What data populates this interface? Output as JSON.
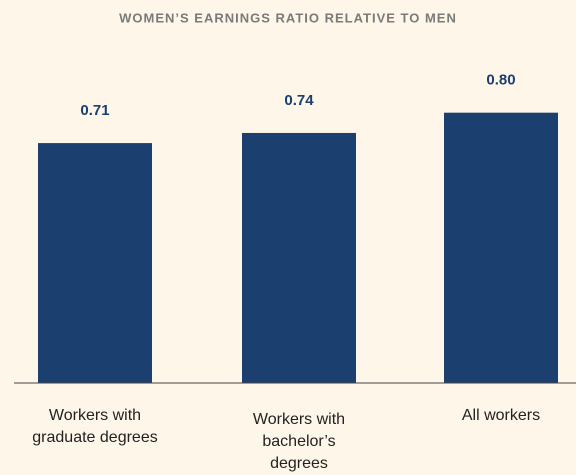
{
  "chart_data": {
    "type": "bar",
    "title": "WOMEN’S EARNINGS RATIO RELATIVE TO MEN",
    "categories": [
      "Workers with graduate degrees",
      "Workers with bachelor’s degrees",
      "All workers"
    ],
    "values": [
      0.71,
      0.74,
      0.8
    ],
    "value_labels": [
      "0.71",
      "0.74",
      "0.80"
    ],
    "color": "#1b3f6e",
    "ylim": [
      0,
      0.95
    ]
  }
}
